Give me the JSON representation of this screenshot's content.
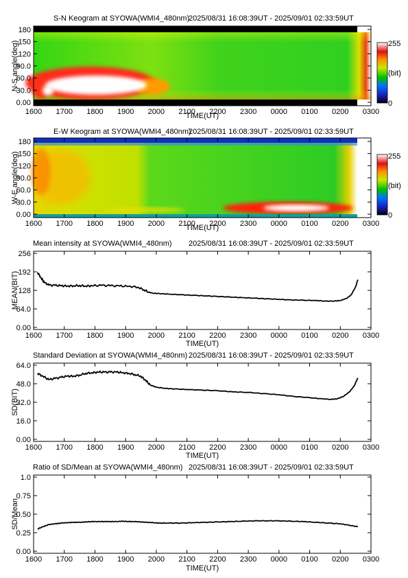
{
  "colors": {
    "line": "#000000",
    "frame": "#000000",
    "keo_green": "#3ddc14",
    "keo_yellow": "#e6e600",
    "keo_red": "#e8121a",
    "keo_white": "#ffffff",
    "keo_black": "#000000",
    "keo_blue": "#1020b0"
  },
  "colorbar": {
    "max_label": "255",
    "mid_label": "(bit)",
    "min_label": "0"
  },
  "chart_data": [
    {
      "type": "heatmap",
      "title": "S-N Keogram at SYOWA(WMI4_480nm)",
      "time_range": "2025/08/31 16:08:39UT - 2025/09/01 02:33:59UT",
      "xlabel": "TIME(UT)",
      "ylabel": "N-S angle(deg)",
      "xticks": [
        "1600",
        "1700",
        "1800",
        "1900",
        "2000",
        "2100",
        "2200",
        "2300",
        "0000",
        "0100",
        "0200",
        "0300"
      ],
      "yticks": [
        "0.00",
        "30.0",
        "60.0",
        "90.0",
        "120",
        "150",
        "180"
      ],
      "ylim": [
        0,
        180
      ],
      "features": [
        {
          "name": "bright aurora band (white core)",
          "x_start": "1610",
          "x_end": "1955",
          "y_from": 15,
          "y_to": 60,
          "level": "saturated"
        },
        {
          "name": "red fringe",
          "x_start": "1600",
          "x_end": "2000",
          "y_from": 5,
          "y_to": 90,
          "level": "high"
        },
        {
          "name": "edges",
          "x_start": "1600",
          "x_end": "0300",
          "y_from": 0,
          "y_to": 180,
          "level": "black at top and bottom rows"
        }
      ]
    },
    {
      "type": "heatmap",
      "title": "E-W Keogram at SYOWA(WMI4_480nm)",
      "time_range": "2025/08/31 16:08:39UT - 2025/09/01 02:33:59UT",
      "xlabel": "TIME(UT)",
      "ylabel": "W-E angle(deg)",
      "xticks": [
        "1600",
        "1700",
        "1800",
        "1900",
        "2000",
        "2100",
        "2200",
        "2300",
        "0000",
        "0100",
        "0200",
        "0300"
      ],
      "yticks": [
        "0.00",
        "30.0",
        "60.0",
        "90.0",
        "120",
        "150",
        "180"
      ],
      "ylim": [
        0,
        180
      ],
      "features": [
        {
          "name": "yellow-orange patch",
          "x_start": "1600",
          "x_end": "1950",
          "y_from": 20,
          "y_to": 175,
          "level": "medium-high"
        },
        {
          "name": "bright arc (white core)",
          "x_start": "2300",
          "x_end": "0200",
          "y_from": 5,
          "y_to": 40,
          "level": "saturated"
        },
        {
          "name": "blue top band",
          "x_start": "1600",
          "x_end": "0240",
          "y_from": 170,
          "y_to": 180,
          "level": "low"
        }
      ]
    },
    {
      "type": "line",
      "title": "Mean intensity at SYOWA(WMI4_480nm)",
      "time_range": "2025/08/31 16:08:39UT - 2025/09/01 02:33:59UT",
      "xlabel": "TIME(UT)",
      "ylabel": "MEAN(BIT)",
      "xticks": [
        "1600",
        "1700",
        "1800",
        "1900",
        "2000",
        "2100",
        "2200",
        "2300",
        "0000",
        "0100",
        "0200",
        "0300"
      ],
      "yticks": [
        "0.00",
        "64.0",
        "128",
        "192",
        "256"
      ],
      "ylim": [
        0,
        256
      ],
      "x": [
        16.13,
        16.25,
        16.35,
        16.5,
        16.7,
        16.9,
        17.1,
        17.3,
        17.5,
        17.7,
        17.9,
        18.2,
        18.5,
        18.8,
        19.1,
        19.4,
        19.6,
        19.75,
        19.9,
        20.1,
        20.4,
        20.8,
        21.2,
        21.6,
        22.0,
        22.4,
        22.8,
        23.2,
        23.6,
        24.0,
        24.4,
        24.8,
        25.2,
        25.5,
        25.8,
        26.0,
        26.2,
        26.35,
        26.5,
        26.57
      ],
      "y": [
        190,
        170,
        155,
        146,
        145,
        144,
        143,
        144,
        145,
        143,
        144,
        145,
        144,
        143,
        142,
        139,
        130,
        122,
        118,
        117,
        115,
        113,
        111,
        109,
        107,
        105,
        103,
        101,
        99,
        97,
        95,
        94,
        93,
        91,
        91,
        93,
        100,
        112,
        140,
        165
      ]
    },
    {
      "type": "line",
      "title": "Standard Deviation at SYOWA(WMI4_480nm)",
      "time_range": "2025/08/31 16:08:39UT - 2025/09/01 02:33:59UT",
      "xlabel": "TIME(UT)",
      "ylabel": "SD(BIT)",
      "xticks": [
        "1600",
        "1700",
        "1800",
        "1900",
        "2000",
        "2100",
        "2200",
        "2300",
        "0000",
        "0100",
        "0200",
        "0300"
      ],
      "yticks": [
        "0.00",
        "16.0",
        "32.0",
        "48.0",
        "64.0"
      ],
      "ylim": [
        0,
        64
      ],
      "x": [
        16.13,
        16.3,
        16.5,
        16.7,
        16.9,
        17.1,
        17.3,
        17.5,
        17.7,
        17.9,
        18.1,
        18.3,
        18.5,
        18.7,
        18.9,
        19.1,
        19.3,
        19.5,
        19.65,
        19.8,
        20.0,
        20.3,
        20.6,
        21.0,
        21.5,
        22.0,
        22.5,
        23.0,
        23.5,
        24.0,
        24.5,
        25.0,
        25.4,
        25.7,
        25.9,
        26.1,
        26.3,
        26.45,
        26.57
      ],
      "y": [
        57,
        54.5,
        51.5,
        52.5,
        53.5,
        54.5,
        54.5,
        55.5,
        57,
        57.5,
        58,
        58,
        58,
        58,
        57.5,
        57,
        56,
        54.5,
        51,
        47,
        45,
        44,
        43.5,
        43,
        42.5,
        42,
        41,
        40.5,
        39.5,
        38.5,
        37,
        36,
        35,
        34.5,
        35,
        37,
        41,
        46,
        53
      ]
    },
    {
      "type": "line",
      "title": "Ratio of SD/Mean at SYOWA(WMI4_480nm)",
      "time_range": "2025/08/31 16:08:39UT - 2025/09/01 02:33:59UT",
      "xlabel": "TIME(UT)",
      "ylabel": "SD/Mean",
      "xticks": [
        "1600",
        "1700",
        "1800",
        "1900",
        "2000",
        "2100",
        "2200",
        "2300",
        "0000",
        "0100",
        "0200",
        "0300"
      ],
      "yticks": [
        "0.00",
        "0.25",
        "0.50",
        "0.75",
        "1.0"
      ],
      "ylim": [
        0,
        1.0
      ],
      "x": [
        16.13,
        16.3,
        16.5,
        16.7,
        16.9,
        17.1,
        17.3,
        17.5,
        17.7,
        17.9,
        18.1,
        18.3,
        18.5,
        18.7,
        18.9,
        19.1,
        19.3,
        19.5,
        19.7,
        19.9,
        20.1,
        20.4,
        20.8,
        21.2,
        21.6,
        22.0,
        22.4,
        22.8,
        23.2,
        23.6,
        24.0,
        24.4,
        24.8,
        25.2,
        25.6,
        26.0,
        26.3,
        26.57
      ],
      "y": [
        0.3,
        0.33,
        0.36,
        0.37,
        0.38,
        0.385,
        0.39,
        0.39,
        0.395,
        0.4,
        0.4,
        0.4,
        0.4,
        0.4,
        0.405,
        0.4,
        0.4,
        0.395,
        0.39,
        0.385,
        0.38,
        0.38,
        0.38,
        0.385,
        0.39,
        0.395,
        0.4,
        0.405,
        0.41,
        0.41,
        0.41,
        0.405,
        0.4,
        0.39,
        0.38,
        0.37,
        0.35,
        0.33
      ]
    }
  ]
}
